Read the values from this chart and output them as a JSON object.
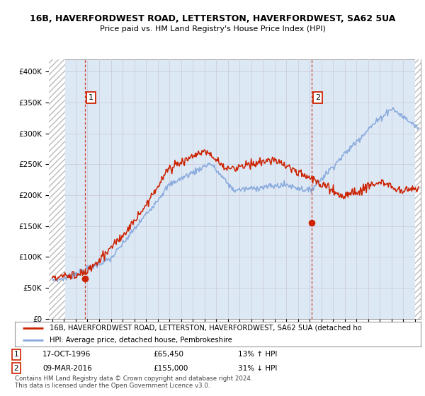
{
  "title_line1": "16B, HAVERFORDWEST ROAD, LETTERSTON, HAVERFORDWEST, SA62 5UA",
  "title_line2": "Price paid vs. HM Land Registry's House Price Index (HPI)",
  "ylabel_ticks": [
    "£0",
    "£50K",
    "£100K",
    "£150K",
    "£200K",
    "£250K",
    "£300K",
    "£350K",
    "£400K"
  ],
  "ytick_values": [
    0,
    50000,
    100000,
    150000,
    200000,
    250000,
    300000,
    350000,
    400000
  ],
  "ylim": [
    0,
    420000
  ],
  "xlim_start": 1993.7,
  "xlim_end": 2025.5,
  "transaction1": {
    "date_num": 1996.8,
    "price": 65450,
    "label": "1",
    "hpi_diff": "13% ↑ HPI",
    "date_str": "17-OCT-1996"
  },
  "transaction2": {
    "date_num": 2016.17,
    "price": 155000,
    "label": "2",
    "hpi_diff": "31% ↓ HPI",
    "date_str": "09-MAR-2016"
  },
  "red_line_color": "#cc2200",
  "blue_line_color": "#88aadd",
  "hatch_color": "#cccccc",
  "grid_color": "#ccccdd",
  "bg_color": "#dde8f5",
  "legend_label_red": "16B, HAVERFORDWEST ROAD, LETTERSTON, HAVERFORDWEST, SA62 5UA (detached ho",
  "legend_label_blue": "HPI: Average price, detached house, Pembrokeshire",
  "footer_line1": "Contains HM Land Registry data © Crown copyright and database right 2024.",
  "footer_line2": "This data is licensed under the Open Government Licence v3.0."
}
